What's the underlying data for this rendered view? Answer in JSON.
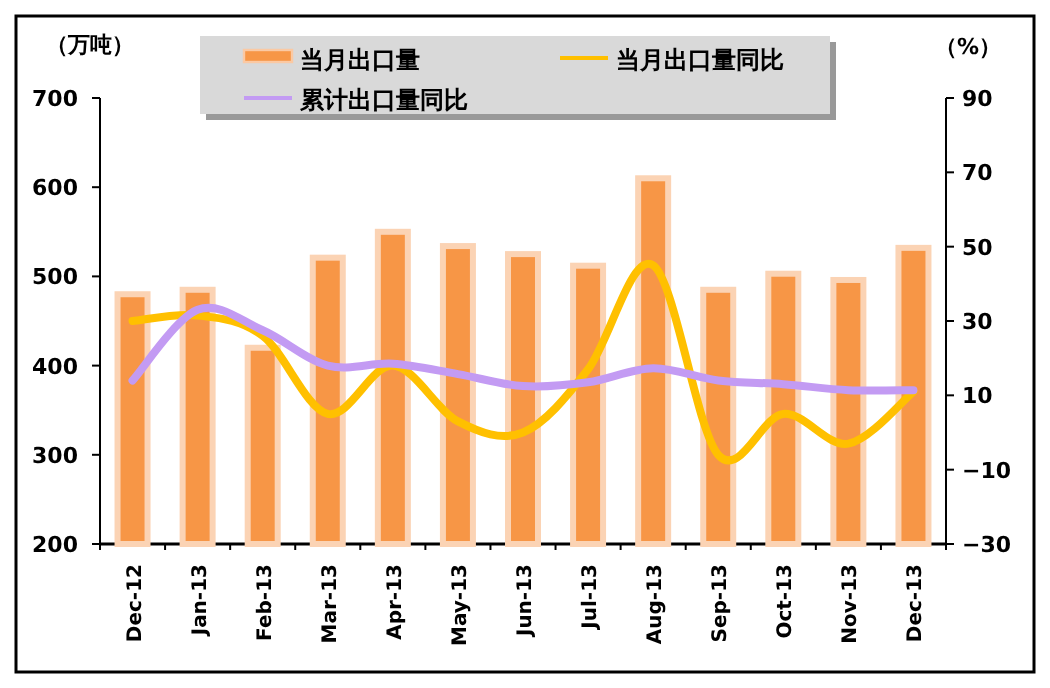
{
  "chart_data": {
    "type": "bar",
    "ylabel": "（万吨）",
    "y2label": "（%）",
    "categories": [
      "Dec-12",
      "Jan-13",
      "Feb-13",
      "Mar-13",
      "Apr-13",
      "May-13",
      "Jun-13",
      "Jul-13",
      "Aug-13",
      "Sep-13",
      "Oct-13",
      "Nov-13",
      "Dec-13"
    ],
    "series": [
      {
        "name": "当月出口量",
        "color": "#f79646",
        "values": [
          480,
          485,
          420,
          521,
          550,
          534,
          525,
          512,
          610,
          485,
          503,
          496,
          532
        ]
      },
      {
        "name": "当月出口量同比",
        "type": "line",
        "axis": "y2",
        "color": "#ffc000",
        "values": [
          30,
          31.5,
          26,
          5,
          18,
          3,
          0,
          17,
          45,
          -6,
          5,
          -3,
          11
        ]
      },
      {
        "name": "累计出口量同比",
        "type": "line",
        "axis": "y2",
        "color": "#c39bf3",
        "values": [
          14,
          33,
          27.5,
          18,
          18.5,
          15.7,
          12.5,
          13.5,
          17.3,
          14,
          13,
          11.4,
          11.4
        ]
      }
    ],
    "ylim": [
      200,
      700
    ],
    "yticks": [
      200,
      300,
      400,
      500,
      600,
      700
    ],
    "y2lim": [
      -30,
      90
    ],
    "y2ticks": [
      -30,
      -10,
      10,
      30,
      50,
      70,
      90
    ],
    "legend": "top"
  }
}
